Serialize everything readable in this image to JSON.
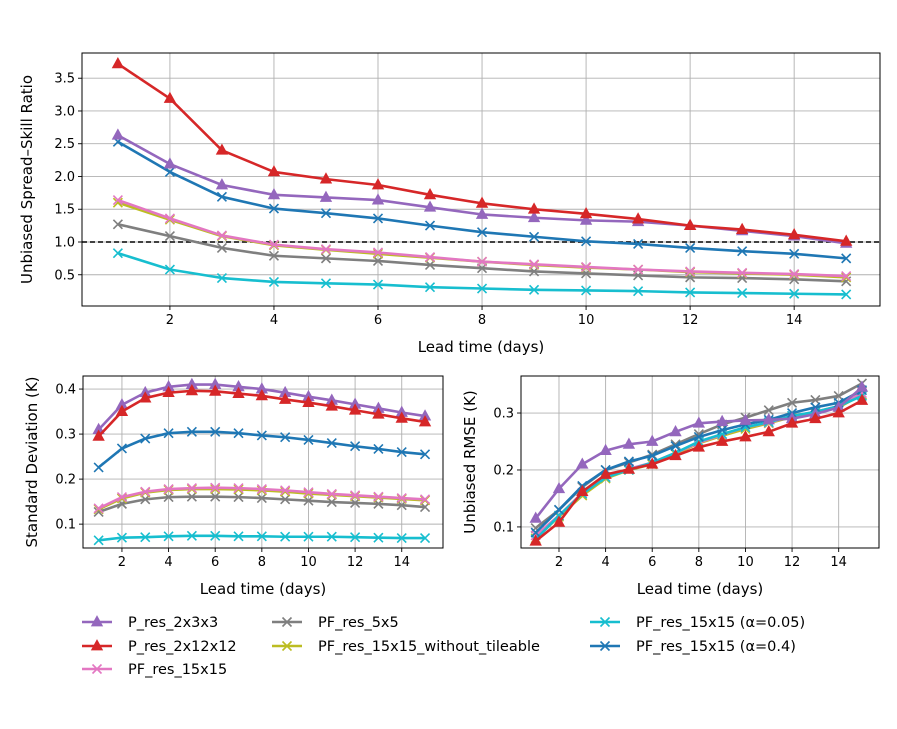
{
  "chart_data": [
    {
      "type": "line",
      "xlabel": "Lead time (days)",
      "ylabel": "Unbiased Spread–Skill Ratio",
      "xlim": [
        0.31,
        15.65
      ],
      "ylim": [
        0.023,
        3.885
      ],
      "xticks": [
        2,
        4,
        6,
        8,
        10,
        12,
        14
      ],
      "yticks": [
        0.5,
        1.0,
        1.5,
        2.0,
        2.5,
        3.0,
        3.5
      ],
      "ytick_labels": [
        "0.5",
        "1.0",
        "1.5",
        "2.0",
        "2.5",
        "3.0",
        "3.5"
      ],
      "grid": true,
      "reference_line": {
        "y": 1.0,
        "style": "dashed",
        "color": "#000000"
      },
      "x": [
        1,
        2,
        3,
        4,
        5,
        6,
        7,
        8,
        9,
        10,
        11,
        12,
        13,
        14,
        15
      ],
      "series": [
        {
          "name": "P_res_2x3x3",
          "values": [
            2.63,
            2.19,
            1.87,
            1.72,
            1.68,
            1.64,
            1.53,
            1.42,
            1.37,
            1.33,
            1.31,
            1.25,
            1.17,
            1.09,
            0.98
          ]
        },
        {
          "name": "P_res_2x12x12",
          "values": [
            3.72,
            3.19,
            2.4,
            2.07,
            1.96,
            1.87,
            1.72,
            1.59,
            1.5,
            1.43,
            1.35,
            1.25,
            1.19,
            1.11,
            1.01
          ]
        },
        {
          "name": "PF_res_15x15",
          "values": [
            1.64,
            1.36,
            1.1,
            0.96,
            0.89,
            0.84,
            0.77,
            0.7,
            0.66,
            0.62,
            0.58,
            0.55,
            0.53,
            0.51,
            0.48
          ]
        },
        {
          "name": "PF_res_5x5",
          "values": [
            1.27,
            1.09,
            0.91,
            0.79,
            0.75,
            0.71,
            0.65,
            0.6,
            0.55,
            0.52,
            0.49,
            0.46,
            0.45,
            0.43,
            0.4
          ]
        },
        {
          "name": "PF_res_15x15_without_tileable",
          "values": [
            1.6,
            1.34,
            1.09,
            0.95,
            0.88,
            0.82,
            0.76,
            0.7,
            0.65,
            0.61,
            0.58,
            0.54,
            0.52,
            0.5,
            0.46
          ]
        },
        {
          "name": "PF_res_15x15 (α=0.05)",
          "values": [
            0.83,
            0.58,
            0.45,
            0.39,
            0.37,
            0.35,
            0.31,
            0.29,
            0.27,
            0.26,
            0.25,
            0.23,
            0.22,
            0.21,
            0.2
          ]
        },
        {
          "name": "PF_res_15x15 (α=0.4)",
          "values": [
            2.53,
            2.07,
            1.69,
            1.51,
            1.44,
            1.36,
            1.25,
            1.15,
            1.08,
            1.01,
            0.97,
            0.91,
            0.86,
            0.82,
            0.75
          ]
        }
      ]
    },
    {
      "type": "line",
      "xlabel": "Lead time (days)",
      "ylabel": "Standard Deviation (K)",
      "xlim": [
        0.33,
        15.77
      ],
      "ylim": [
        0.047,
        0.429
      ],
      "xticks": [
        2,
        4,
        6,
        8,
        10,
        12,
        14
      ],
      "yticks": [
        0.1,
        0.2,
        0.3,
        0.4
      ],
      "ytick_labels": [
        "0.1",
        "0.2",
        "0.3",
        "0.4"
      ],
      "grid": true,
      "x": [
        1,
        2,
        3,
        4,
        5,
        6,
        7,
        8,
        9,
        10,
        11,
        12,
        13,
        14,
        15
      ],
      "series": [
        {
          "name": "P_res_2x3x3",
          "values": [
            0.31,
            0.365,
            0.392,
            0.405,
            0.41,
            0.41,
            0.405,
            0.4,
            0.392,
            0.383,
            0.375,
            0.366,
            0.357,
            0.348,
            0.34
          ]
        },
        {
          "name": "P_res_2x12x12",
          "values": [
            0.295,
            0.35,
            0.38,
            0.392,
            0.396,
            0.395,
            0.39,
            0.385,
            0.377,
            0.37,
            0.362,
            0.353,
            0.344,
            0.335,
            0.327
          ]
        },
        {
          "name": "PF_res_15x15",
          "values": [
            0.135,
            0.16,
            0.172,
            0.178,
            0.18,
            0.181,
            0.18,
            0.178,
            0.175,
            0.171,
            0.167,
            0.164,
            0.161,
            0.158,
            0.155
          ]
        },
        {
          "name": "PF_res_5x5",
          "values": [
            0.127,
            0.145,
            0.155,
            0.16,
            0.161,
            0.161,
            0.16,
            0.158,
            0.155,
            0.152,
            0.149,
            0.147,
            0.145,
            0.142,
            0.138
          ]
        },
        {
          "name": "PF_res_15x15_without_tileable",
          "values": [
            0.133,
            0.157,
            0.17,
            0.176,
            0.178,
            0.178,
            0.177,
            0.175,
            0.172,
            0.168,
            0.165,
            0.162,
            0.159,
            0.156,
            0.153
          ]
        },
        {
          "name": "PF_res_15x15 (α=0.05)",
          "values": [
            0.064,
            0.07,
            0.071,
            0.073,
            0.074,
            0.074,
            0.073,
            0.073,
            0.072,
            0.072,
            0.072,
            0.071,
            0.07,
            0.069,
            0.069
          ]
        },
        {
          "name": "PF_res_15x15 (α=0.4)",
          "values": [
            0.226,
            0.268,
            0.29,
            0.302,
            0.305,
            0.305,
            0.302,
            0.297,
            0.293,
            0.287,
            0.28,
            0.273,
            0.267,
            0.26,
            0.255
          ]
        }
      ]
    },
    {
      "type": "line",
      "xlabel": "Lead time (days)",
      "ylabel": "Unbiased RMSE (K)",
      "xlim": [
        0.37,
        15.73
      ],
      "ylim": [
        0.063,
        0.365
      ],
      "xticks": [
        2,
        4,
        6,
        8,
        10,
        12,
        14
      ],
      "yticks": [
        0.1,
        0.2,
        0.3
      ],
      "ytick_labels": [
        "0.1",
        "0.2",
        "0.3"
      ],
      "grid": true,
      "x": [
        1,
        2,
        3,
        4,
        5,
        6,
        7,
        8,
        9,
        10,
        11,
        12,
        13,
        14,
        15
      ],
      "series": [
        {
          "name": "P_res_2x3x3",
          "values": [
            0.115,
            0.167,
            0.21,
            0.234,
            0.245,
            0.25,
            0.267,
            0.282,
            0.285,
            0.287,
            0.288,
            0.29,
            0.298,
            0.31,
            0.345
          ]
        },
        {
          "name": "P_res_2x12x12",
          "values": [
            0.075,
            0.108,
            0.162,
            0.192,
            0.201,
            0.21,
            0.225,
            0.24,
            0.25,
            0.258,
            0.267,
            0.282,
            0.29,
            0.3,
            0.322
          ]
        },
        {
          "name": "PF_res_15x15",
          "values": [
            0.085,
            0.12,
            0.16,
            0.188,
            0.202,
            0.213,
            0.23,
            0.248,
            0.262,
            0.275,
            0.283,
            0.295,
            0.302,
            0.312,
            0.335
          ]
        },
        {
          "name": "PF_res_5x5",
          "values": [
            0.098,
            0.13,
            0.17,
            0.2,
            0.213,
            0.227,
            0.245,
            0.263,
            0.28,
            0.292,
            0.305,
            0.318,
            0.323,
            0.33,
            0.352
          ]
        },
        {
          "name": "PF_res_15x15_without_tileable",
          "values": [
            0.08,
            0.118,
            0.155,
            0.185,
            0.2,
            0.21,
            0.228,
            0.247,
            0.26,
            0.272,
            0.282,
            0.293,
            0.3,
            0.31,
            0.332
          ]
        },
        {
          "name": "PF_res_15x15 (α=0.05)",
          "values": [
            0.078,
            0.12,
            0.158,
            0.187,
            0.2,
            0.213,
            0.23,
            0.25,
            0.263,
            0.275,
            0.284,
            0.295,
            0.302,
            0.312,
            0.33
          ]
        },
        {
          "name": "PF_res_15x15 (α=0.4)",
          "values": [
            0.09,
            0.13,
            0.172,
            0.2,
            0.215,
            0.225,
            0.242,
            0.258,
            0.27,
            0.28,
            0.288,
            0.3,
            0.31,
            0.318,
            0.34
          ]
        }
      ]
    }
  ],
  "legend": {
    "placement": "bottom",
    "entries": [
      {
        "label": "P_res_2x3x3",
        "color": "#9467bd",
        "marker": "triangle"
      },
      {
        "label": "P_res_2x12x12",
        "color": "#d62728",
        "marker": "triangle"
      },
      {
        "label": "PF_res_15x15",
        "color": "#e377c2",
        "marker": "x"
      },
      {
        "label": "PF_res_5x5",
        "color": "#7f7f7f",
        "marker": "x"
      },
      {
        "label": "PF_res_15x15_without_tileable",
        "color": "#bcbd22",
        "marker": "x"
      },
      {
        "label": "PF_res_15x15 (α=0.05)",
        "color": "#17becf",
        "marker": "x"
      },
      {
        "label": "PF_res_15x15 (α=0.4)",
        "color": "#1f77b4",
        "marker": "x"
      }
    ]
  }
}
